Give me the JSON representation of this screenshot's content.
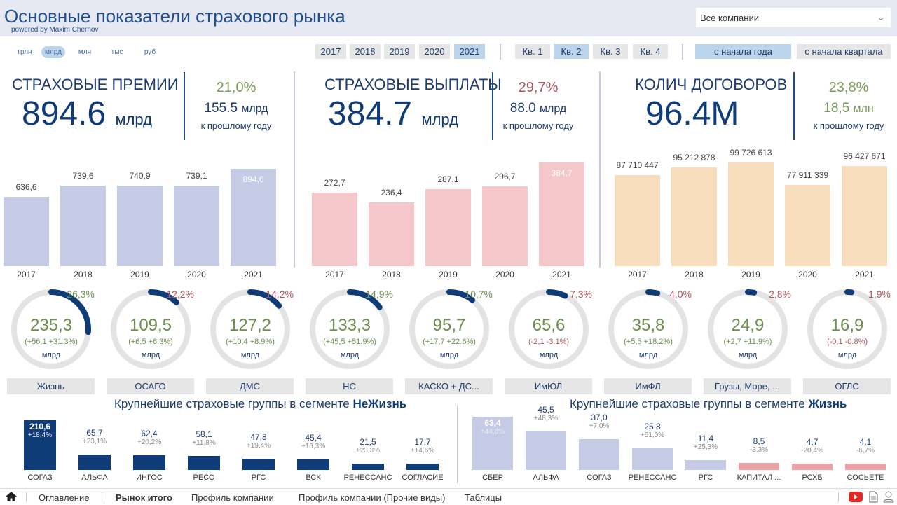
{
  "header": {
    "title": "Основные показатели страхового рынка",
    "powered": "powered by Maxim Chernov",
    "company_select": "Все компании"
  },
  "units": [
    {
      "label": "трлн",
      "selected": false
    },
    {
      "label": "млрд",
      "selected": true
    },
    {
      "label": "млн",
      "selected": false
    },
    {
      "label": "тыс",
      "selected": false
    },
    {
      "label": "руб",
      "selected": false
    }
  ],
  "years": [
    {
      "label": "2017",
      "selected": false
    },
    {
      "label": "2018",
      "selected": false
    },
    {
      "label": "2019",
      "selected": false
    },
    {
      "label": "2020",
      "selected": false
    },
    {
      "label": "2021",
      "selected": true
    }
  ],
  "quarters": [
    {
      "label": "Кв. 1",
      "selected": false
    },
    {
      "label": "Кв. 2",
      "selected": true
    },
    {
      "label": "Кв. 3",
      "selected": false
    },
    {
      "label": "Кв. 4",
      "selected": false
    }
  ],
  "periods": [
    {
      "label": "с начала года",
      "selected": true
    },
    {
      "label": "с начала квартала",
      "selected": false
    }
  ],
  "kpis": [
    {
      "title": "СТРАХОВЫЕ ПРЕМИИ",
      "value": "894.6",
      "unit": "млрд",
      "pct": "21,0%",
      "pct_color": "#7a9a5a",
      "abs": "155.5",
      "abs_unit": "млрд",
      "abs_color": "#1f3d6e",
      "sub": "к прошлому году"
    },
    {
      "title": "СТРАХОВЫЕ ВЫПЛАТЫ",
      "value": "384.7",
      "unit": "млрд",
      "pct": "29,7%",
      "pct_color": "#b0585e",
      "abs": "88.0",
      "abs_unit": "млрд",
      "abs_color": "#1f3d6e",
      "sub": "к прошлому году"
    },
    {
      "title": "КОЛИЧ ДОГОВОРОВ",
      "value": "96.4M",
      "unit": "",
      "pct": "23,8%",
      "pct_color": "#7a9a5a",
      "abs": "18,5",
      "abs_unit": "млн",
      "abs_color": "#7a9a5a",
      "sub": "к прошлому году"
    }
  ],
  "chart_data": [
    {
      "type": "bar",
      "categories": [
        "2017",
        "2018",
        "2019",
        "2020",
        "2021"
      ],
      "values": [
        636.6,
        739.6,
        740.9,
        739.1,
        894.6
      ],
      "labels": [
        "636,6",
        "739,6",
        "740,9",
        "739,1",
        "894,6"
      ],
      "color": "#c5cae5"
    },
    {
      "type": "bar",
      "categories": [
        "2017",
        "2018",
        "2019",
        "2020",
        "2021"
      ],
      "values": [
        272.7,
        236.4,
        287.1,
        296.7,
        384.7
      ],
      "labels": [
        "272,7",
        "236,4",
        "287,1",
        "296,7",
        "384,7"
      ],
      "color": "#f4c7ca"
    },
    {
      "type": "bar",
      "categories": [
        "2017",
        "2018",
        "2019",
        "2020",
        "2021"
      ],
      "values": [
        87710447,
        95212878,
        99726613,
        77911339,
        96427671
      ],
      "labels": [
        "87 710 447",
        "95 212 878",
        "99 726 613",
        "77 911 339",
        "96 427 671"
      ],
      "color": "#f7ddbc"
    },
    {
      "type": "bar",
      "title": "Крупнейшие страховые группы в сегменте ",
      "title_bold": "НеЖизнь",
      "categories": [
        "СОГАЗ",
        "АЛЬФА",
        "ИНГОС",
        "РЕСО",
        "РГС",
        "ВСК",
        "РЕНЕССАНС",
        "СОГЛАСИЕ"
      ],
      "values": [
        210.6,
        65.7,
        62.4,
        58.1,
        47.8,
        45.4,
        21.5,
        17.7
      ],
      "labels": [
        "210,6",
        "65,7",
        "62,4",
        "58,1",
        "47,8",
        "45,4",
        "21,5",
        "17,7"
      ],
      "changes": [
        "+18,4%",
        "+23,1%",
        "+20,2%",
        "+11,8%",
        "+19,4%",
        "+16,3%",
        "+23,3%",
        "+14,6%"
      ]
    },
    {
      "type": "bar",
      "title": "Крупнейшие страховые группы в сегменте ",
      "title_bold": "Жизнь",
      "categories": [
        "СБЕР",
        "АЛЬФА",
        "СОГАЗ",
        "РЕНЕССАНС",
        "РГС",
        "КАПИТАЛ ...",
        "РСХБ",
        "СОСЬЕТЕ"
      ],
      "values": [
        63.4,
        45.5,
        37.0,
        25.8,
        11.4,
        8.5,
        4.7,
        4.1
      ],
      "labels": [
        "63,4",
        "45,5",
        "37,0",
        "25,8",
        "11,4",
        "8,5",
        "4,7",
        "4,1"
      ],
      "changes": [
        "+44,8%",
        "+48,3%",
        "+7,0%",
        "+51,0%",
        "+25,3%",
        "-3,3%",
        "-20,4%",
        "-6,7%"
      ]
    }
  ],
  "gauges": [
    {
      "label": "Жизнь",
      "value": "235,3",
      "change": "(+56,1 +31.3%)",
      "unit": "млрд",
      "share": 26.3,
      "share_label": "26,3%",
      "up": true,
      "share_up": true
    },
    {
      "label": "ОСАГО",
      "value": "109,5",
      "change": "(+6,5 +6.3%)",
      "unit": "млрд",
      "share": 12.2,
      "share_label": "12,2%",
      "up": true,
      "share_up": false
    },
    {
      "label": "ДМС",
      "value": "127,2",
      "change": "(+10,4 +8.9%)",
      "unit": "млрд",
      "share": 14.2,
      "share_label": "14,2%",
      "up": true,
      "share_up": false
    },
    {
      "label": "НС",
      "value": "133,3",
      "change": "(+45,5 +51.9%)",
      "unit": "млрд",
      "share": 14.9,
      "share_label": "14,9%",
      "up": true,
      "share_up": true
    },
    {
      "label": "КАСКО + ДС...",
      "value": "95,7",
      "change": "(+17,7 +22.6%)",
      "unit": "млрд",
      "share": 10.7,
      "share_label": "10,7%",
      "up": true,
      "share_up": true
    },
    {
      "label": "ИмЮЛ",
      "value": "65,6",
      "change": "(-2,1 -3.1%)",
      "unit": "млрд",
      "share": 7.3,
      "share_label": "7,3%",
      "up": false,
      "share_up": false
    },
    {
      "label": "ИмФЛ",
      "value": "35,8",
      "change": "(+5,5 +18.2%)",
      "unit": "млрд",
      "share": 4.0,
      "share_label": "4,0%",
      "up": true,
      "share_up": false
    },
    {
      "label": "Грузы, Море, ...",
      "value": "24,9",
      "change": "(+2,7 +11.9%)",
      "unit": "млрд",
      "share": 2.8,
      "share_label": "2,8%",
      "up": true,
      "share_up": false
    },
    {
      "label": "ОГЛС",
      "value": "16,9",
      "change": "(-0,1 -0.8%)",
      "unit": "млрд",
      "share": 1.9,
      "share_label": "1,9%",
      "up": false,
      "share_up": false
    }
  ],
  "footer": {
    "nav": [
      {
        "label": "Оглавление",
        "active": false
      },
      {
        "label": "Рынок итого",
        "active": true
      },
      {
        "label": "Профиль компании",
        "active": false
      },
      {
        "label": "Профиль компании (Прочие виды)",
        "active": false
      },
      {
        "label": "Таблицы",
        "active": false
      }
    ],
    "icons": [
      "home-icon",
      "youtube-icon",
      "document-icon",
      "contact-icon"
    ]
  },
  "colors": {
    "navy": "#0f3c78",
    "positive": "#6f8f4e",
    "negative": "#b0585e",
    "life_negative_bar": "#eaa2a6",
    "life_bar": "#c5cae5"
  }
}
